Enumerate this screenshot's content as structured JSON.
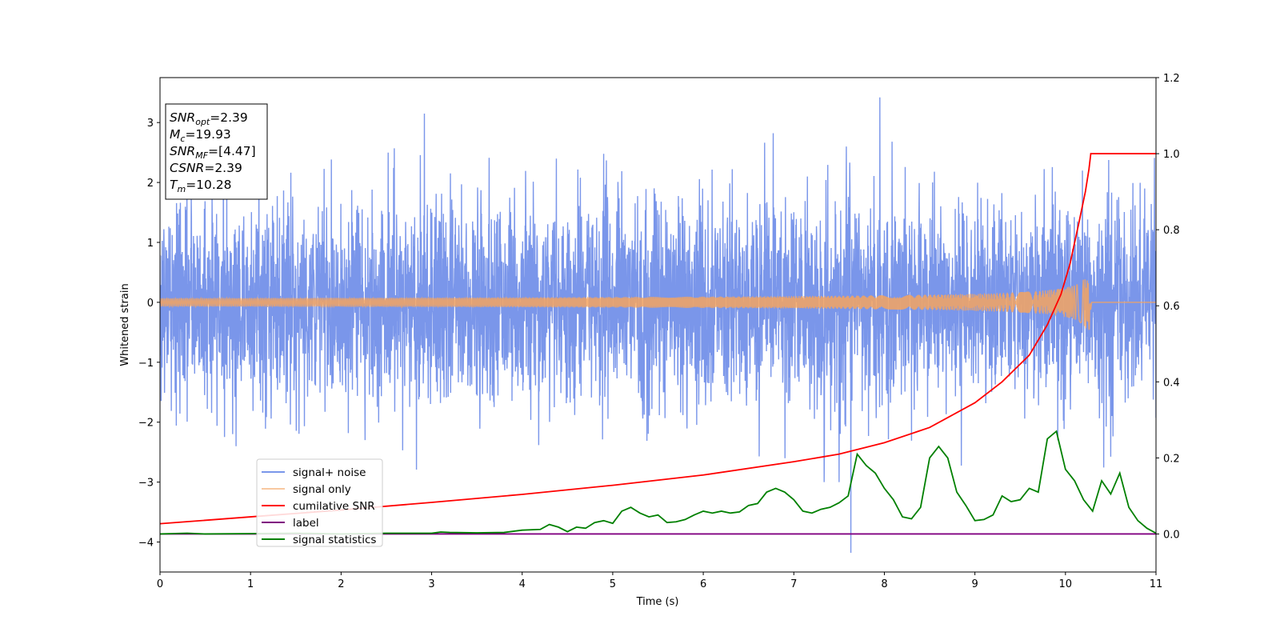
{
  "chart_data": {
    "type": "line",
    "xlabel": "Time (s)",
    "ylabel": "Whitened strain",
    "xlim": [
      0,
      11
    ],
    "ylim": [
      -4.5,
      3.75
    ],
    "y2lim": [
      -0.1,
      1.2
    ],
    "xticks": [
      0,
      1,
      2,
      3,
      4,
      5,
      6,
      7,
      8,
      9,
      10,
      11
    ],
    "yticks": [
      -4,
      -3,
      -2,
      -1,
      0,
      1,
      2,
      3
    ],
    "y2ticks": [
      "0.0",
      "0.2",
      "0.4",
      "0.6",
      "0.8",
      "1.0",
      "1.2"
    ],
    "legend_position": "lower-left",
    "grid": false,
    "annotation": {
      "lines": [
        {
          "sym": "SNR",
          "sub": "opt",
          "text": "=2.39"
        },
        {
          "sym": "M",
          "sub": "c",
          "text": "=19.93"
        },
        {
          "sym": "SNR",
          "sub": "MF",
          "text": "=[4.47]"
        },
        {
          "sym": "CSNR",
          "sub": "",
          "text": "=2.39"
        },
        {
          "sym": "T",
          "sub": "m",
          "text": "=10.28"
        }
      ]
    },
    "series": [
      {
        "key": "noise",
        "name": "signal+ noise",
        "color": "#4169e1",
        "axis": "left",
        "description": "white noise, approx. std 0.85, peaks near +3.4 at t=7.95 and -4.2 at t=7.63"
      },
      {
        "key": "signal",
        "name": "signal only",
        "color": "#f4a460",
        "axis": "left",
        "chirp": {
          "end": 10.28,
          "peak_amplitude": 0.45
        }
      },
      {
        "key": "csnr",
        "name": "cumilative SNR",
        "color": "#ff0000",
        "axis": "right",
        "x": [
          0,
          1,
          2,
          3,
          4,
          5,
          6,
          7,
          7.5,
          8,
          8.5,
          9,
          9.3,
          9.6,
          9.8,
          9.95,
          10.05,
          10.15,
          10.22,
          10.26,
          10.28,
          10.3,
          11
        ],
        "y": [
          0.027,
          0.045,
          0.063,
          0.083,
          0.104,
          0.128,
          0.155,
          0.19,
          0.21,
          0.24,
          0.28,
          0.345,
          0.4,
          0.47,
          0.55,
          0.63,
          0.71,
          0.82,
          0.9,
          0.96,
          1.0,
          1.0,
          1.0
        ]
      },
      {
        "key": "label",
        "name": "label",
        "color": "#800080",
        "axis": "right",
        "x": [
          0,
          11
        ],
        "y": [
          0,
          0
        ]
      },
      {
        "key": "stats",
        "name": "signal statistics",
        "color": "#008000",
        "axis": "right",
        "x": [
          0,
          0.3,
          0.5,
          1,
          1.5,
          2,
          2.5,
          3,
          3.1,
          3.2,
          3.5,
          3.8,
          4.0,
          4.2,
          4.3,
          4.4,
          4.5,
          4.6,
          4.7,
          4.8,
          4.9,
          5.0,
          5.1,
          5.2,
          5.3,
          5.4,
          5.5,
          5.6,
          5.7,
          5.8,
          5.9,
          6.0,
          6.1,
          6.2,
          6.3,
          6.4,
          6.5,
          6.6,
          6.7,
          6.8,
          6.9,
          7.0,
          7.1,
          7.2,
          7.3,
          7.4,
          7.5,
          7.6,
          7.7,
          7.8,
          7.9,
          8.0,
          8.1,
          8.2,
          8.3,
          8.4,
          8.5,
          8.6,
          8.7,
          8.8,
          8.9,
          9.0,
          9.1,
          9.2,
          9.3,
          9.4,
          9.5,
          9.6,
          9.7,
          9.8,
          9.9,
          10.0,
          10.1,
          10.2,
          10.3,
          10.4,
          10.5,
          10.6,
          10.7,
          10.8,
          10.9,
          11.0
        ],
        "y": [
          0,
          0.002,
          0,
          0.001,
          0.002,
          0,
          0.002,
          0.002,
          0.005,
          0.004,
          0.003,
          0.004,
          0.01,
          0.012,
          0.025,
          0.018,
          0.006,
          0.018,
          0.015,
          0.03,
          0.035,
          0.028,
          0.06,
          0.07,
          0.055,
          0.045,
          0.05,
          0.03,
          0.032,
          0.038,
          0.05,
          0.06,
          0.055,
          0.06,
          0.055,
          0.058,
          0.075,
          0.08,
          0.11,
          0.12,
          0.11,
          0.09,
          0.06,
          0.055,
          0.065,
          0.07,
          0.082,
          0.1,
          0.21,
          0.18,
          0.16,
          0.12,
          0.09,
          0.045,
          0.04,
          0.07,
          0.2,
          0.23,
          0.2,
          0.11,
          0.075,
          0.035,
          0.038,
          0.05,
          0.1,
          0.085,
          0.09,
          0.12,
          0.11,
          0.25,
          0.27,
          0.17,
          0.14,
          0.09,
          0.06,
          0.14,
          0.105,
          0.16,
          0.07,
          0.035,
          0.015,
          0.002
        ]
      }
    ]
  }
}
